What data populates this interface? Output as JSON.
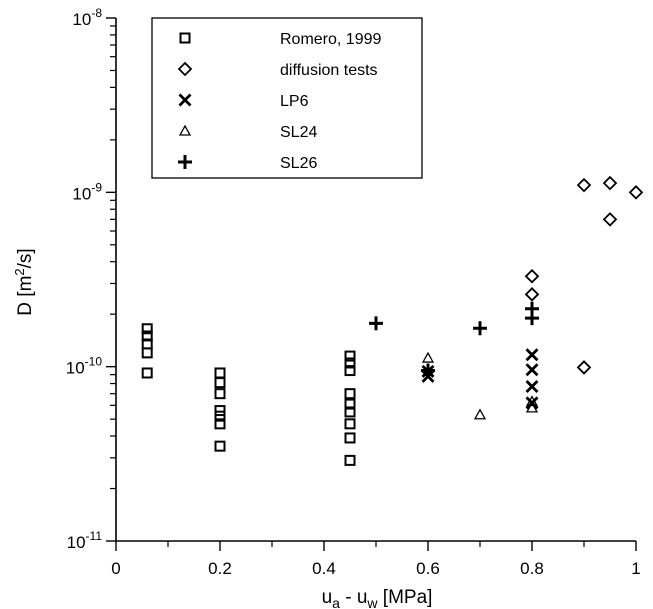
{
  "chart_data": {
    "type": "scatter",
    "y_scale": "log",
    "xlim": [
      0,
      1
    ],
    "ylim": [
      1e-11,
      1e-08
    ],
    "xticks": [
      0,
      0.2,
      0.4,
      0.6,
      0.8,
      1
    ],
    "xtick_labels": [
      "0",
      "0.2",
      "0.4",
      "0.6",
      "0.8",
      "1"
    ],
    "yticks": [
      1e-11,
      1e-10,
      1e-09,
      1e-08
    ],
    "ytick_labels": [
      {
        "base": "10",
        "exp": "-11"
      },
      {
        "base": "10",
        "exp": "-10"
      },
      {
        "base": "10",
        "exp": "-9"
      },
      {
        "base": "10",
        "exp": "-8"
      }
    ],
    "xlabel": {
      "u": "u",
      "sub_a": "a",
      "minus": " - u",
      "sub_w": "w",
      "unit": " [MPa]"
    },
    "ylabel": {
      "main": "D [m",
      "sup": "2",
      "tail": "/s]"
    },
    "grid": false,
    "legend_position": "top-left",
    "series": [
      {
        "name": "Romero, 1999",
        "marker": "square",
        "points": [
          [
            0.06,
            1.65e-10
          ],
          [
            0.06,
            1.5e-10
          ],
          [
            0.06,
            1.35e-10
          ],
          [
            0.06,
            1.2e-10
          ],
          [
            0.06,
            9.2e-11
          ],
          [
            0.2,
            9.2e-11
          ],
          [
            0.2,
            8.1e-11
          ],
          [
            0.2,
            7e-11
          ],
          [
            0.2,
            5.6e-11
          ],
          [
            0.2,
            5.2e-11
          ],
          [
            0.2,
            4.7e-11
          ],
          [
            0.2,
            3.5e-11
          ],
          [
            0.45,
            1.15e-10
          ],
          [
            0.45,
            1.05e-10
          ],
          [
            0.45,
            9.5e-11
          ],
          [
            0.45,
            7e-11
          ],
          [
            0.45,
            6.1e-11
          ],
          [
            0.45,
            5.5e-11
          ],
          [
            0.45,
            4.7e-11
          ],
          [
            0.45,
            3.9e-11
          ],
          [
            0.45,
            2.9e-11
          ]
        ]
      },
      {
        "name": "diffusion tests",
        "marker": "diamond",
        "points": [
          [
            0.8,
            3.3e-10
          ],
          [
            0.8,
            2.6e-10
          ],
          [
            0.9,
            1.1e-09
          ],
          [
            0.95,
            1.13e-09
          ],
          [
            1.0,
            1e-09
          ],
          [
            0.95,
            7e-10
          ],
          [
            0.9,
            9.9e-11
          ]
        ]
      },
      {
        "name": "LP6",
        "marker": "x",
        "points": [
          [
            0.6,
            9.4e-11
          ],
          [
            0.6,
            8.8e-11
          ],
          [
            0.8,
            1.17e-10
          ],
          [
            0.8,
            9.6e-11
          ],
          [
            0.8,
            7.7e-11
          ],
          [
            0.8,
            6.2e-11
          ]
        ]
      },
      {
        "name": "SL24",
        "marker": "triangle",
        "points": [
          [
            0.6,
            1.12e-10
          ],
          [
            0.7,
            5.3e-11
          ],
          [
            0.8,
            6.3e-11
          ],
          [
            0.8,
            5.8e-11
          ]
        ]
      },
      {
        "name": "SL26",
        "marker": "plus",
        "points": [
          [
            0.5,
            1.77e-10
          ],
          [
            0.6,
            9.5e-11
          ],
          [
            0.7,
            1.66e-10
          ],
          [
            0.8,
            2.15e-10
          ],
          [
            0.8,
            1.9e-10
          ]
        ]
      }
    ]
  }
}
